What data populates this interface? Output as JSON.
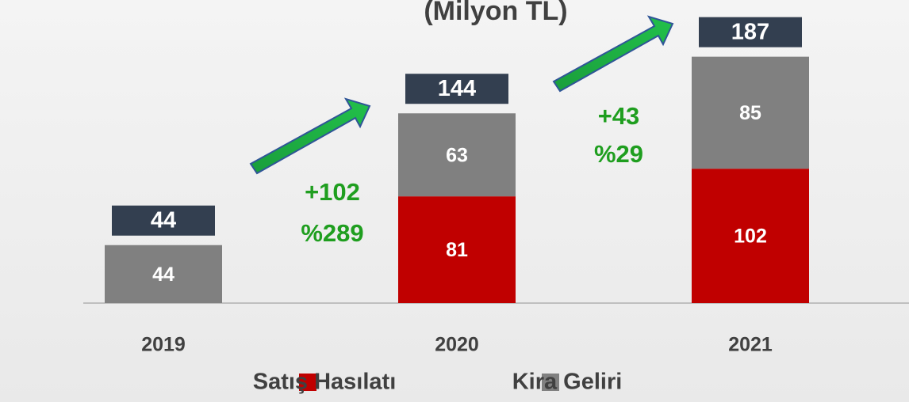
{
  "chart_data": {
    "type": "stacked_bar",
    "title": "(Milyon TL)",
    "categories": [
      "2019",
      "2020",
      "2021"
    ],
    "series": [
      {
        "name": "Satış Hasılatı",
        "color": "#c00000",
        "values": [
          null,
          81,
          102
        ]
      },
      {
        "name": "Kira Geliri",
        "color": "#808080",
        "values": [
          44,
          63,
          85
        ]
      }
    ],
    "totals": [
      44,
      144,
      187
    ],
    "annotations": [
      "+102",
      "%289",
      "+43",
      "%29"
    ]
  }
}
